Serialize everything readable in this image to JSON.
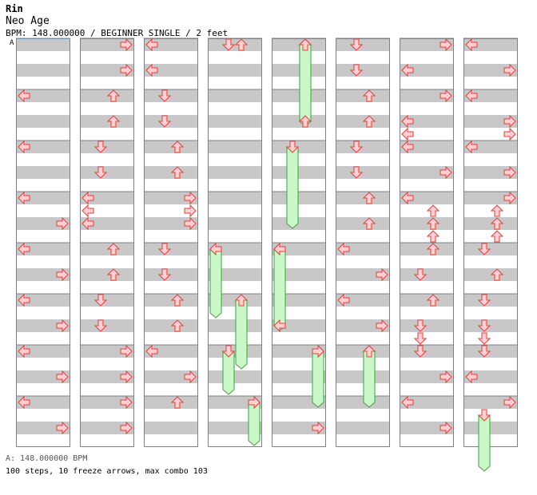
{
  "header": {
    "artist": "Rin",
    "title": "Neo Age",
    "info": "BPM: 148.000000 / BEGINNER SINGLE / 2 feet"
  },
  "bpm_marker": "A",
  "footer": {
    "bpm_legend": "A: 148.000000 BPM",
    "summary": "100 steps, 10 freeze arrows, max combo 103"
  },
  "colors": {
    "stripe": "#c8c8c8",
    "grid": "#808080",
    "arrow_fill": "#ffd0d0",
    "arrow_stroke": "#e04040",
    "freeze_fill": "#c8f8c8",
    "freeze_stroke": "#40a040",
    "bpm_line": "#6aa0d8"
  },
  "chart": {
    "columns": 8,
    "measures_per_column": 8,
    "lanes": [
      "left",
      "down",
      "up",
      "right"
    ],
    "steps": [
      [
        0,
        1,
        0,
        "left"
      ],
      [
        0,
        2,
        0,
        "left"
      ],
      [
        0,
        3,
        0,
        "left"
      ],
      [
        0,
        3,
        2,
        "right"
      ],
      [
        0,
        4,
        0,
        "left"
      ],
      [
        0,
        4,
        2,
        "right"
      ],
      [
        0,
        5,
        0,
        "left"
      ],
      [
        0,
        5,
        2,
        "right"
      ],
      [
        0,
        6,
        0,
        "left"
      ],
      [
        0,
        6,
        2,
        "right"
      ],
      [
        0,
        7,
        0,
        "left"
      ],
      [
        0,
        7,
        2,
        "right"
      ],
      [
        1,
        0,
        0,
        "right"
      ],
      [
        1,
        0,
        2,
        "right"
      ],
      [
        1,
        1,
        0,
        "up"
      ],
      [
        1,
        1,
        2,
        "up"
      ],
      [
        1,
        2,
        0,
        "down"
      ],
      [
        1,
        2,
        2,
        "down"
      ],
      [
        1,
        3,
        0,
        "left"
      ],
      [
        1,
        3,
        1,
        "left"
      ],
      [
        1,
        3,
        2,
        "left"
      ],
      [
        1,
        4,
        0,
        "up"
      ],
      [
        1,
        4,
        2,
        "up"
      ],
      [
        1,
        5,
        0,
        "down"
      ],
      [
        1,
        5,
        2,
        "down"
      ],
      [
        1,
        6,
        0,
        "right"
      ],
      [
        1,
        6,
        2,
        "right"
      ],
      [
        1,
        7,
        0,
        "right"
      ],
      [
        1,
        7,
        2,
        "right"
      ],
      [
        2,
        0,
        0,
        "left"
      ],
      [
        2,
        0,
        2,
        "left"
      ],
      [
        2,
        1,
        0,
        "down"
      ],
      [
        2,
        1,
        2,
        "down"
      ],
      [
        2,
        2,
        0,
        "up"
      ],
      [
        2,
        2,
        2,
        "up"
      ],
      [
        2,
        3,
        0,
        "right"
      ],
      [
        2,
        3,
        1,
        "right"
      ],
      [
        2,
        3,
        2,
        "right"
      ],
      [
        2,
        4,
        0,
        "down"
      ],
      [
        2,
        4,
        2,
        "down"
      ],
      [
        2,
        5,
        0,
        "up"
      ],
      [
        2,
        5,
        2,
        "up"
      ],
      [
        2,
        6,
        0,
        "left"
      ],
      [
        2,
        6,
        2,
        "right"
      ],
      [
        2,
        7,
        0,
        "up"
      ],
      [
        3,
        0,
        0,
        "down"
      ],
      [
        3,
        0,
        0,
        "up"
      ],
      [
        3,
        7,
        0,
        "right"
      ],
      [
        4,
        0,
        0,
        "up"
      ],
      [
        4,
        1,
        2,
        "up"
      ],
      [
        4,
        4,
        0,
        "left"
      ],
      [
        4,
        5,
        2,
        "left"
      ],
      [
        4,
        6,
        0,
        "right"
      ],
      [
        4,
        7,
        2,
        "right"
      ],
      [
        5,
        0,
        0,
        "down"
      ],
      [
        5,
        0,
        2,
        "down"
      ],
      [
        5,
        1,
        0,
        "up"
      ],
      [
        5,
        1,
        2,
        "up"
      ],
      [
        5,
        2,
        0,
        "down"
      ],
      [
        5,
        2,
        2,
        "down"
      ],
      [
        5,
        3,
        0,
        "up"
      ],
      [
        5,
        3,
        2,
        "up"
      ],
      [
        5,
        4,
        0,
        "left"
      ],
      [
        5,
        4,
        2,
        "right"
      ],
      [
        5,
        5,
        0,
        "left"
      ],
      [
        5,
        5,
        2,
        "right"
      ],
      [
        5,
        6,
        0,
        "up"
      ],
      [
        6,
        0,
        0,
        "right"
      ],
      [
        6,
        0,
        2,
        "left"
      ],
      [
        6,
        1,
        0,
        "right"
      ],
      [
        6,
        1,
        2,
        "left"
      ],
      [
        6,
        1,
        3,
        "left"
      ],
      [
        6,
        2,
        0,
        "left"
      ],
      [
        6,
        2,
        2,
        "right"
      ],
      [
        6,
        3,
        0,
        "left"
      ],
      [
        6,
        3,
        1,
        "up"
      ],
      [
        6,
        3,
        2,
        "up"
      ],
      [
        6,
        3,
        3,
        "up"
      ],
      [
        6,
        4,
        0,
        "up"
      ],
      [
        6,
        4,
        2,
        "down"
      ],
      [
        6,
        5,
        0,
        "up"
      ],
      [
        6,
        5,
        2,
        "down"
      ],
      [
        6,
        5,
        3,
        "down"
      ],
      [
        6,
        6,
        0,
        "down"
      ],
      [
        6,
        6,
        2,
        "right"
      ],
      [
        6,
        7,
        0,
        "left"
      ],
      [
        6,
        7,
        2,
        "right"
      ],
      [
        7,
        0,
        0,
        "left"
      ],
      [
        7,
        0,
        2,
        "right"
      ],
      [
        7,
        1,
        0,
        "left"
      ],
      [
        7,
        1,
        2,
        "right"
      ],
      [
        7,
        1,
        3,
        "right"
      ],
      [
        7,
        2,
        0,
        "left"
      ],
      [
        7,
        2,
        2,
        "right"
      ],
      [
        7,
        3,
        0,
        "right"
      ],
      [
        7,
        3,
        1,
        "up"
      ],
      [
        7,
        3,
        2,
        "up"
      ],
      [
        7,
        3,
        3,
        "up"
      ],
      [
        7,
        4,
        0,
        "down"
      ],
      [
        7,
        4,
        2,
        "up"
      ],
      [
        7,
        5,
        0,
        "down"
      ],
      [
        7,
        5,
        2,
        "down"
      ],
      [
        7,
        5,
        3,
        "down"
      ],
      [
        7,
        6,
        0,
        "down"
      ],
      [
        7,
        6,
        2,
        "left"
      ],
      [
        7,
        7,
        0,
        "right"
      ]
    ],
    "freezes": [
      [
        3,
        4,
        0,
        5,
        1,
        "left"
      ],
      [
        3,
        5,
        0,
        6,
        1,
        "up"
      ],
      [
        3,
        6,
        0,
        6,
        3,
        "down"
      ],
      [
        3,
        7,
        0,
        7,
        3,
        "right"
      ],
      [
        4,
        0,
        0,
        1,
        2,
        "up"
      ],
      [
        4,
        2,
        0,
        3,
        2,
        "down"
      ],
      [
        4,
        4,
        0,
        5,
        2,
        "left"
      ],
      [
        4,
        6,
        0,
        7,
        0,
        "right"
      ],
      [
        5,
        6,
        0,
        7,
        0,
        "up"
      ],
      [
        7,
        7,
        1,
        8,
        1,
        "down"
      ]
    ]
  }
}
